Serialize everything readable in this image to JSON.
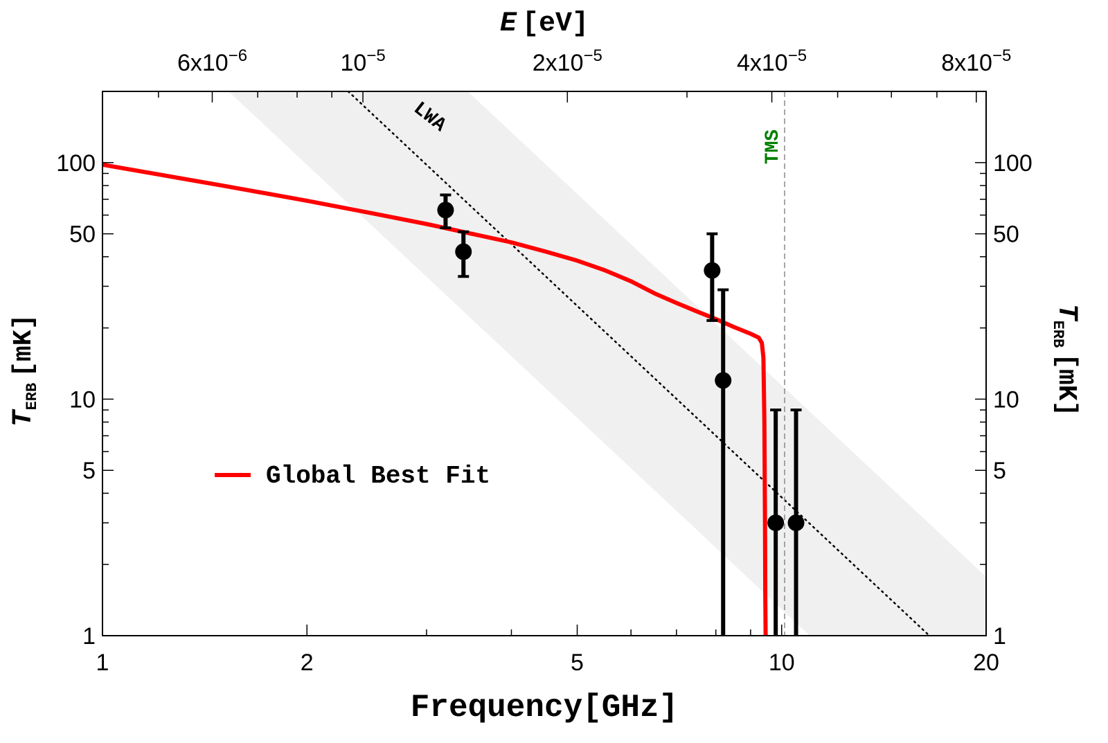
{
  "chart_data": {
    "type": "line",
    "x_scale": "log",
    "y_scale": "log",
    "xlim": [
      1,
      20
    ],
    "ylim": [
      1,
      200
    ],
    "xlabel": {
      "main": "Frequency",
      "unit": "[GHz]"
    },
    "ylabel": {
      "main": "T",
      "sub": "ERB",
      "unit": "[mK]"
    },
    "x2label": {
      "main": "E",
      "unit": "[eV]"
    },
    "x_ticks": [
      {
        "value": 1,
        "label": "1"
      },
      {
        "value": 2,
        "label": "2"
      },
      {
        "value": 5,
        "label": "5"
      },
      {
        "value": 10,
        "label": "10"
      },
      {
        "value": 20,
        "label": "20"
      }
    ],
    "y_ticks": [
      {
        "value": 1,
        "label": "1"
      },
      {
        "value": 5,
        "label": "5"
      },
      {
        "value": 10,
        "label": "10"
      },
      {
        "value": 50,
        "label": "50"
      },
      {
        "value": 100,
        "label": "100"
      }
    ],
    "top_ticks": [
      {
        "energy": "6e-6",
        "base": "6x10",
        "exp": "−6"
      },
      {
        "energy": "1e-5",
        "base": "10",
        "exp": "−5"
      },
      {
        "energy": "2e-5",
        "base": "2x10",
        "exp": "−5"
      },
      {
        "energy": "4e-5",
        "base": "4x10",
        "exp": "−5"
      },
      {
        "energy": "8e-5",
        "base": "8x10",
        "exp": "−5"
      }
    ],
    "series": [
      {
        "name": "Global Best Fit",
        "color": "#ff0000",
        "x": [
          1,
          1.5,
          2,
          2.5,
          3,
          3.5,
          4,
          4.5,
          5,
          5.5,
          6,
          6.5,
          7,
          7.5,
          8,
          8.5,
          9,
          9.25,
          9.35,
          9.4,
          9.43,
          9.45,
          9.46,
          9.47
        ],
        "y": [
          98,
          80,
          69,
          61,
          55,
          50,
          46,
          42,
          38.5,
          35,
          31.5,
          28,
          25.5,
          23.5,
          21.8,
          20.2,
          18.9,
          18.2,
          17.3,
          15,
          8,
          3,
          1.5,
          1
        ]
      }
    ],
    "points": {
      "x": [
        3.2,
        3.4,
        7.9,
        8.2,
        9.8,
        10.5
      ],
      "y": [
        63,
        42,
        35,
        12,
        3,
        3
      ],
      "err_low": [
        53,
        33,
        21.5,
        1,
        1,
        1
      ],
      "err_high": [
        73,
        51,
        50,
        29,
        9,
        9
      ]
    },
    "band": {
      "name": "LWA",
      "line_x": [
        2.3,
        16.5
      ],
      "line_y": [
        200,
        1
      ],
      "width_factor": 1.5
    },
    "vline": {
      "label": "TMS",
      "x": 10.1,
      "color": "#008000"
    },
    "legend": {
      "label": "Global Best Fit",
      "placement": "center-left"
    },
    "grid": false
  }
}
